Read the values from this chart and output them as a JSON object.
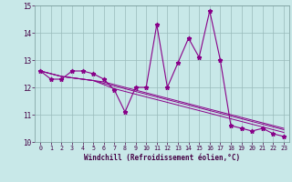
{
  "title": "",
  "xlabel": "Windchill (Refroidissement éolien,°C)",
  "x": [
    0,
    1,
    2,
    3,
    4,
    5,
    6,
    7,
    8,
    9,
    10,
    11,
    12,
    13,
    14,
    15,
    16,
    17,
    18,
    19,
    20,
    21,
    22,
    23
  ],
  "line1": [
    12.6,
    12.3,
    12.3,
    12.6,
    12.6,
    12.5,
    12.3,
    11.9,
    11.1,
    12.0,
    12.0,
    14.3,
    12.0,
    12.9,
    13.8,
    13.1,
    14.8,
    13.0,
    10.6,
    10.5,
    10.4,
    10.5,
    10.3,
    10.2
  ],
  "line2": [
    12.6,
    12.5,
    12.4,
    12.35,
    12.3,
    12.25,
    12.2,
    12.1,
    12.0,
    11.9,
    11.8,
    11.7,
    11.6,
    11.5,
    11.4,
    11.3,
    11.2,
    11.1,
    11.0,
    10.9,
    10.8,
    10.7,
    10.6,
    10.5
  ],
  "line3": [
    12.6,
    12.5,
    12.4,
    12.35,
    12.3,
    12.25,
    12.15,
    12.05,
    11.95,
    11.85,
    11.75,
    11.65,
    11.55,
    11.45,
    11.35,
    11.25,
    11.15,
    11.05,
    10.95,
    10.85,
    10.75,
    10.65,
    10.55,
    10.45
  ],
  "line4": [
    12.6,
    12.5,
    12.4,
    12.35,
    12.3,
    12.25,
    12.1,
    11.95,
    11.85,
    11.75,
    11.65,
    11.55,
    11.45,
    11.35,
    11.25,
    11.15,
    11.05,
    10.95,
    10.85,
    10.75,
    10.65,
    10.55,
    10.45,
    10.35
  ],
  "ylim": [
    10,
    15
  ],
  "xlim": [
    -0.5,
    23.5
  ],
  "yticks": [
    10,
    11,
    12,
    13,
    14,
    15
  ],
  "xticks": [
    0,
    1,
    2,
    3,
    4,
    5,
    6,
    7,
    8,
    9,
    10,
    11,
    12,
    13,
    14,
    15,
    16,
    17,
    18,
    19,
    20,
    21,
    22,
    23
  ],
  "line_color": "#880088",
  "bg_color": "#c8e8e8",
  "grid_color": "#99bbbb"
}
